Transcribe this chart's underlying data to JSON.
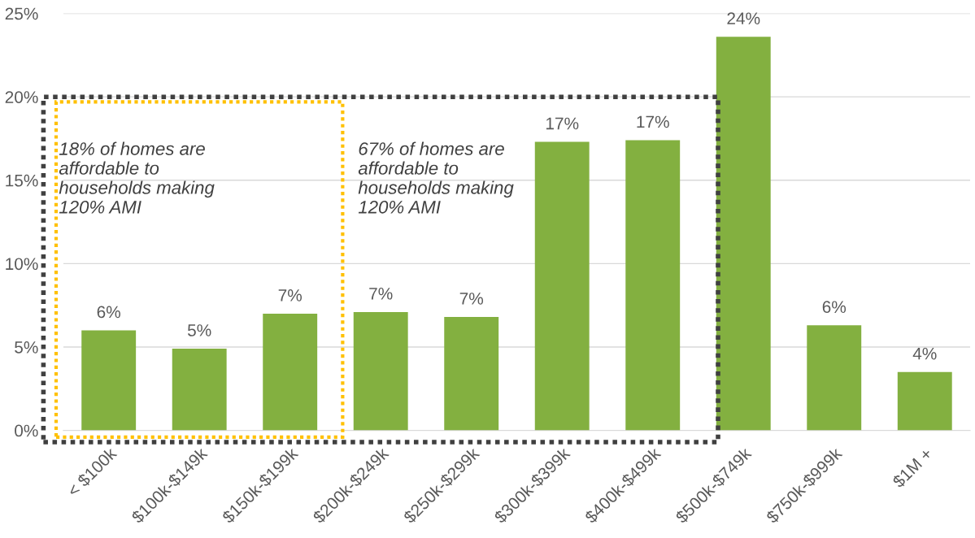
{
  "chart_data": {
    "type": "bar",
    "categories": [
      "< $100k",
      "$100k-$149k",
      "$150k-$199k",
      "$200k-$249k",
      "$250k-$299k",
      "$300k-$399k",
      "$400k-$499k",
      "$500k-$749k",
      "$750k-$999k",
      "$1M +"
    ],
    "values": [
      6.0,
      4.9,
      7.0,
      7.1,
      6.8,
      17.3,
      17.4,
      23.6,
      6.3,
      3.5
    ],
    "value_labels": [
      "6%",
      "5%",
      "7%",
      "7%",
      "7%",
      "17%",
      "17%",
      "24%",
      "6%",
      "4%"
    ],
    "color": "#83b040",
    "ylim": [
      0,
      25
    ],
    "yticks": [
      {
        "value": 0,
        "label": "0%"
      },
      {
        "value": 5,
        "label": "5%"
      },
      {
        "value": 10,
        "label": "10%"
      },
      {
        "value": 15,
        "label": "15%"
      },
      {
        "value": 20,
        "label": "20%"
      },
      {
        "value": 25,
        "label": "25%"
      }
    ],
    "grid": "y",
    "annotations": [
      "18% of homes are\naffordable to\nhouseholds making\n120% AMI",
      "67% of homes are\naffordable to\nhouseholds making\n120% AMI"
    ]
  }
}
